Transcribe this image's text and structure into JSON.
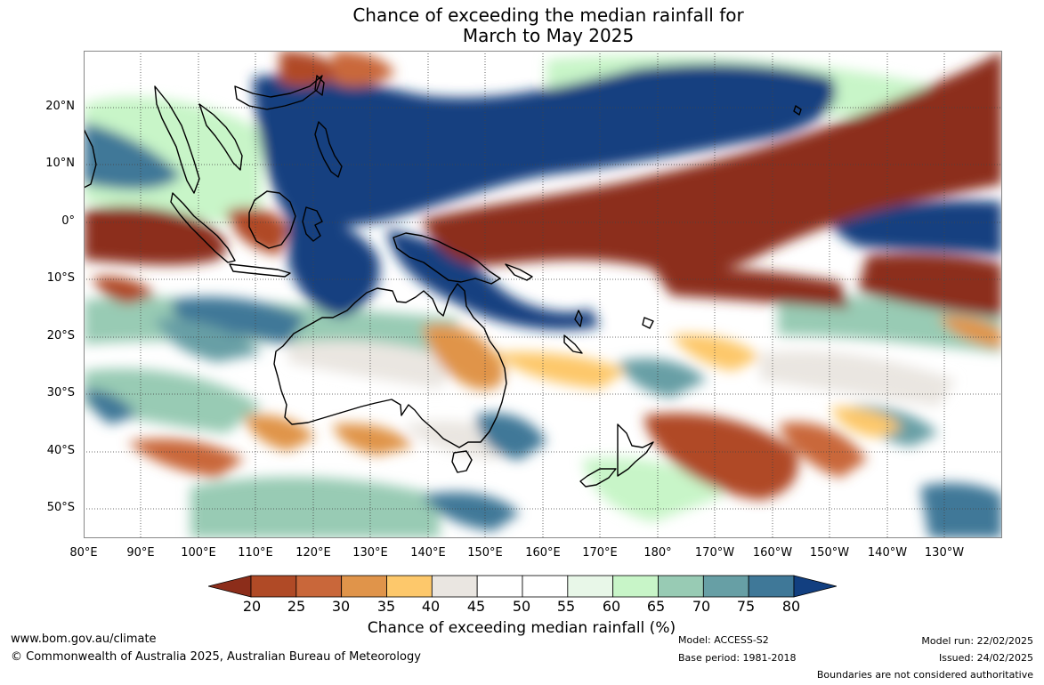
{
  "title": {
    "line1": "Chance of exceeding the median rainfall for",
    "line2": "March to May 2025"
  },
  "map": {
    "lat_range": [
      -55,
      30
    ],
    "lon_range": [
      80,
      240
    ],
    "lat_labels": [
      "20°N",
      "10°N",
      "0°",
      "10°S",
      "20°S",
      "30°S",
      "40°S",
      "50°S"
    ],
    "lon_labels": [
      "80°E",
      "90°E",
      "100°E",
      "110°E",
      "120°E",
      "130°E",
      "140°E",
      "150°E",
      "160°E",
      "170°E",
      "180°",
      "170°W",
      "160°W",
      "150°W",
      "140°W",
      "130°W"
    ],
    "gridlines": true
  },
  "colorbar": {
    "title": "Chance of exceeding median rainfall (%)",
    "ticks": [
      "20",
      "25",
      "30",
      "35",
      "40",
      "45",
      "50",
      "55",
      "60",
      "65",
      "70",
      "75",
      "80"
    ],
    "colors": [
      "#8c2d1a",
      "#b04a26",
      "#c9673a",
      "#e0944a",
      "#fdc86b",
      "#eae6e1",
      "#ffffff",
      "#ffffff",
      "#e8f7e8",
      "#c8f5c8",
      "#98cbb4",
      "#679fa5",
      "#3f7898",
      "#123f80"
    ]
  },
  "footer": {
    "website": "www.bom.gov.au/climate",
    "copyright": "© Commonwealth of Australia 2025, Australian Bureau of Meteorology",
    "model": "Model: ACCESS-S2",
    "base_period": "Base period: 1981-2018",
    "model_run": "Model run: 22/02/2025",
    "issued": "Issued: 24/02/2025",
    "disclaimer": "Boundaries are not considered authoritative"
  }
}
